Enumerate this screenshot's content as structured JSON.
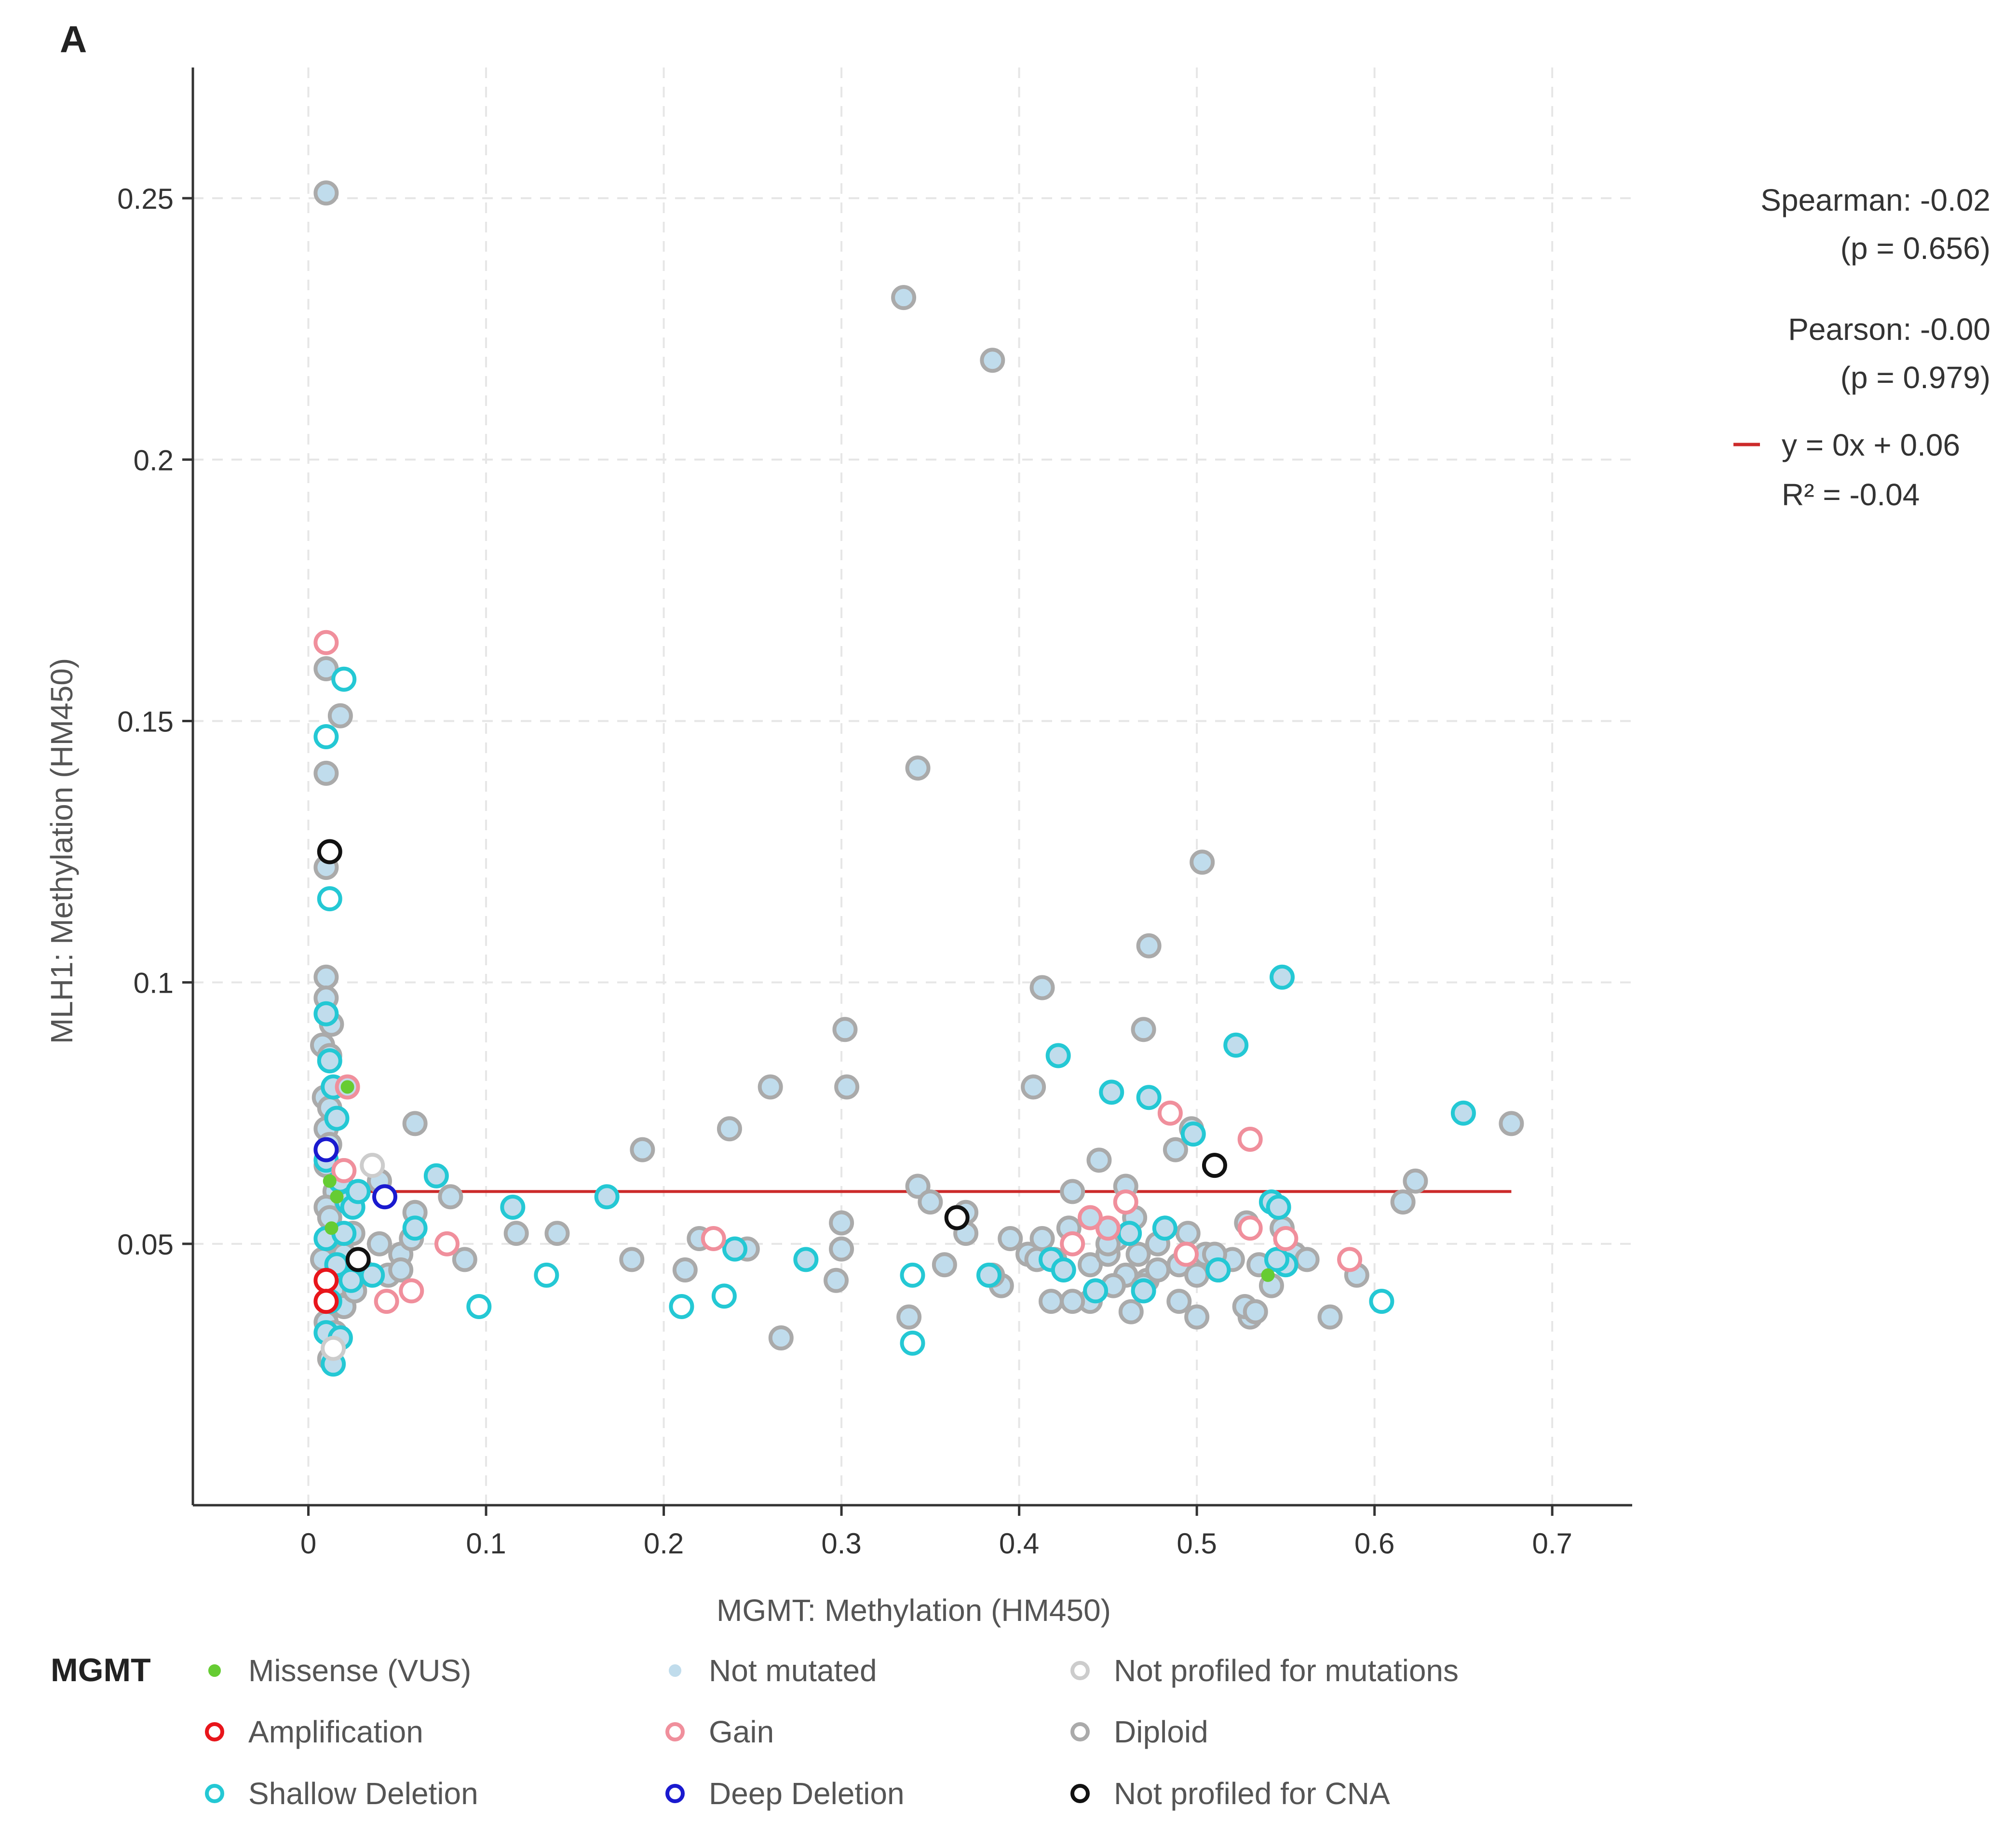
{
  "panel_label": "A",
  "chart_data": {
    "type": "scatter",
    "title": "",
    "xlabel": "MGMT: Methylation (HM450)",
    "ylabel": "MLH1: Methylation (HM450)",
    "xlim": [
      -0.065,
      0.745
    ],
    "ylim": [
      0.0,
      0.275
    ],
    "x_ticks": [
      0,
      0.1,
      0.2,
      0.3,
      0.4,
      0.5,
      0.6,
      0.7
    ],
    "x_tick_labels": [
      "0",
      "0.1",
      "0.2",
      "0.3",
      "0.4",
      "0.5",
      "0.6",
      "0.7"
    ],
    "y_ticks": [
      0.05,
      0.1,
      0.15,
      0.2,
      0.25
    ],
    "y_tick_labels": [
      "0.05",
      "0.1",
      "0.15",
      "0.2",
      "0.25"
    ],
    "grid": true,
    "stats": {
      "spearman": "Spearman: -0.02",
      "spearman_p": "(p = 0.656)",
      "pearson": "Pearson: -0.00",
      "pearson_p": "(p = 0.979)",
      "regression": "y = 0x + 0.06",
      "r2": "R² = -0.04"
    },
    "regression_line": {
      "slope": 0,
      "intercept": 0.06,
      "x_range": [
        0.01,
        0.677
      ],
      "color": "#cc2a2a"
    },
    "legend": {
      "title": "MGMT",
      "position": "bottom",
      "entries": [
        {
          "key": "missense",
          "label": "Missense (VUS)",
          "fill": "#66cc33",
          "stroke": "#66cc33",
          "solid": true
        },
        {
          "key": "notmut",
          "label": "Not mutated",
          "fill": "#c0dcec",
          "stroke": "#c0dcec",
          "solid": true
        },
        {
          "key": "notprof",
          "label": "Not profiled for mutations",
          "fill": "#ffffff",
          "stroke": "#cccccc",
          "solid": false
        },
        {
          "key": "amp",
          "label": "Amplification",
          "fill": "#ffffff",
          "stroke": "#e8151b",
          "solid": false
        },
        {
          "key": "gain",
          "label": "Gain",
          "fill": "#ffffff",
          "stroke": "#f08f9c",
          "solid": false
        },
        {
          "key": "diploid",
          "label": "Diploid",
          "fill": "#ffffff",
          "stroke": "#aaaaaa",
          "solid": false
        },
        {
          "key": "shallow",
          "label": "Shallow Deletion",
          "fill": "#ffffff",
          "stroke": "#24c8d4",
          "solid": false
        },
        {
          "key": "deep",
          "label": "Deep Deletion",
          "fill": "#ffffff",
          "stroke": "#1a1acf",
          "solid": false
        },
        {
          "key": "nocna",
          "label": "Not profiled for CNA",
          "fill": "#ffffff",
          "stroke": "#111111",
          "solid": false
        }
      ]
    },
    "categories": {
      "diploid": {
        "fill": "#c0dcec",
        "stroke": "#aaaaaa"
      },
      "shallow": {
        "fill": "#c0dcec",
        "stroke": "#24c8d4"
      },
      "shallow_open": {
        "fill": "#ffffff",
        "stroke": "#24c8d4"
      },
      "gain": {
        "fill": "#c0dcec",
        "stroke": "#f08f9c"
      },
      "gain_open": {
        "fill": "#ffffff",
        "stroke": "#f08f9c"
      },
      "amp": {
        "fill": "#ffffff",
        "stroke": "#e8151b"
      },
      "deep": {
        "fill": "#ffffff",
        "stroke": "#1a1acf"
      },
      "nocna": {
        "fill": "#ffffff",
        "stroke": "#111111"
      },
      "notprof": {
        "fill": "#ffffff",
        "stroke": "#cccccc"
      }
    },
    "missense_points": [
      [
        0.012,
        0.062
      ],
      [
        0.016,
        0.059
      ],
      [
        0.022,
        0.08
      ],
      [
        0.013,
        0.053
      ],
      [
        0.54,
        0.044
      ]
    ],
    "series": [
      {
        "name": "diploid",
        "points": [
          [
            0.01,
            0.251
          ],
          [
            0.335,
            0.231
          ],
          [
            0.385,
            0.219
          ],
          [
            0.01,
            0.16
          ],
          [
            0.018,
            0.151
          ],
          [
            0.01,
            0.14
          ],
          [
            0.343,
            0.141
          ],
          [
            0.503,
            0.123
          ],
          [
            0.01,
            0.122
          ],
          [
            0.01,
            0.101
          ],
          [
            0.473,
            0.107
          ],
          [
            0.413,
            0.099
          ],
          [
            0.01,
            0.097
          ],
          [
            0.013,
            0.092
          ],
          [
            0.302,
            0.091
          ],
          [
            0.47,
            0.091
          ],
          [
            0.008,
            0.088
          ],
          [
            0.012,
            0.086
          ],
          [
            0.408,
            0.08
          ],
          [
            0.26,
            0.08
          ],
          [
            0.303,
            0.08
          ],
          [
            0.009,
            0.078
          ],
          [
            0.012,
            0.076
          ],
          [
            0.01,
            0.072
          ],
          [
            0.06,
            0.073
          ],
          [
            0.237,
            0.072
          ],
          [
            0.677,
            0.073
          ],
          [
            0.012,
            0.069
          ],
          [
            0.488,
            0.068
          ],
          [
            0.188,
            0.068
          ],
          [
            0.497,
            0.072
          ],
          [
            0.01,
            0.065
          ],
          [
            0.02,
            0.064
          ],
          [
            0.343,
            0.061
          ],
          [
            0.445,
            0.066
          ],
          [
            0.623,
            0.062
          ],
          [
            0.04,
            0.062
          ],
          [
            0.015,
            0.06
          ],
          [
            0.46,
            0.061
          ],
          [
            0.08,
            0.059
          ],
          [
            0.616,
            0.058
          ],
          [
            0.37,
            0.056
          ],
          [
            0.35,
            0.058
          ],
          [
            0.43,
            0.06
          ],
          [
            0.01,
            0.057
          ],
          [
            0.06,
            0.056
          ],
          [
            0.012,
            0.055
          ],
          [
            0.018,
            0.05
          ],
          [
            0.025,
            0.052
          ],
          [
            0.04,
            0.05
          ],
          [
            0.052,
            0.048
          ],
          [
            0.058,
            0.051
          ],
          [
            0.088,
            0.047
          ],
          [
            0.117,
            0.052
          ],
          [
            0.14,
            0.052
          ],
          [
            0.182,
            0.047
          ],
          [
            0.22,
            0.051
          ],
          [
            0.247,
            0.049
          ],
          [
            0.3,
            0.054
          ],
          [
            0.3,
            0.049
          ],
          [
            0.297,
            0.043
          ],
          [
            0.212,
            0.045
          ],
          [
            0.37,
            0.052
          ],
          [
            0.358,
            0.046
          ],
          [
            0.395,
            0.051
          ],
          [
            0.405,
            0.048
          ],
          [
            0.413,
            0.051
          ],
          [
            0.42,
            0.047
          ],
          [
            0.428,
            0.053
          ],
          [
            0.44,
            0.046
          ],
          [
            0.45,
            0.048
          ],
          [
            0.455,
            0.051
          ],
          [
            0.46,
            0.044
          ],
          [
            0.467,
            0.048
          ],
          [
            0.472,
            0.043
          ],
          [
            0.478,
            0.05
          ],
          [
            0.49,
            0.046
          ],
          [
            0.495,
            0.052
          ],
          [
            0.5,
            0.044
          ],
          [
            0.505,
            0.048
          ],
          [
            0.512,
            0.045
          ],
          [
            0.52,
            0.047
          ],
          [
            0.528,
            0.054
          ],
          [
            0.535,
            0.046
          ],
          [
            0.542,
            0.042
          ],
          [
            0.548,
            0.053
          ],
          [
            0.555,
            0.048
          ],
          [
            0.562,
            0.047
          ],
          [
            0.59,
            0.044
          ],
          [
            0.575,
            0.036
          ],
          [
            0.53,
            0.036
          ],
          [
            0.5,
            0.036
          ],
          [
            0.463,
            0.037
          ],
          [
            0.44,
            0.039
          ],
          [
            0.418,
            0.039
          ],
          [
            0.43,
            0.039
          ],
          [
            0.39,
            0.042
          ],
          [
            0.338,
            0.036
          ],
          [
            0.266,
            0.032
          ],
          [
            0.012,
            0.045
          ],
          [
            0.016,
            0.042
          ],
          [
            0.02,
            0.038
          ],
          [
            0.026,
            0.041
          ],
          [
            0.01,
            0.035
          ],
          [
            0.015,
            0.033
          ],
          [
            0.02,
            0.048
          ],
          [
            0.03,
            0.045
          ],
          [
            0.045,
            0.044
          ],
          [
            0.052,
            0.045
          ],
          [
            0.008,
            0.047
          ],
          [
            0.478,
            0.045
          ],
          [
            0.47,
            0.042
          ],
          [
            0.49,
            0.039
          ],
          [
            0.51,
            0.048
          ],
          [
            0.527,
            0.038
          ],
          [
            0.533,
            0.037
          ],
          [
            0.41,
            0.047
          ],
          [
            0.453,
            0.042
          ],
          [
            0.385,
            0.044
          ],
          [
            0.012,
            0.028
          ],
          [
            0.45,
            0.05
          ],
          [
            0.465,
            0.055
          ]
        ]
      },
      {
        "name": "shallow",
        "points": [
          [
            0.01,
            0.094
          ],
          [
            0.012,
            0.085
          ],
          [
            0.014,
            0.08
          ],
          [
            0.016,
            0.074
          ],
          [
            0.01,
            0.066
          ],
          [
            0.018,
            0.062
          ],
          [
            0.022,
            0.058
          ],
          [
            0.025,
            0.057
          ],
          [
            0.01,
            0.051
          ],
          [
            0.016,
            0.046
          ],
          [
            0.024,
            0.043
          ],
          [
            0.01,
            0.033
          ],
          [
            0.018,
            0.032
          ],
          [
            0.014,
            0.027
          ],
          [
            0.06,
            0.053
          ],
          [
            0.072,
            0.063
          ],
          [
            0.115,
            0.057
          ],
          [
            0.168,
            0.059
          ],
          [
            0.24,
            0.049
          ],
          [
            0.28,
            0.047
          ],
          [
            0.383,
            0.044
          ],
          [
            0.418,
            0.047
          ],
          [
            0.425,
            0.045
          ],
          [
            0.443,
            0.041
          ],
          [
            0.462,
            0.052
          ],
          [
            0.47,
            0.041
          ],
          [
            0.482,
            0.053
          ],
          [
            0.498,
            0.071
          ],
          [
            0.512,
            0.045
          ],
          [
            0.522,
            0.088
          ],
          [
            0.542,
            0.058
          ],
          [
            0.548,
            0.101
          ],
          [
            0.55,
            0.046
          ],
          [
            0.422,
            0.086
          ],
          [
            0.452,
            0.079
          ],
          [
            0.473,
            0.078
          ],
          [
            0.65,
            0.075
          ],
          [
            0.036,
            0.044
          ],
          [
            0.028,
            0.06
          ],
          [
            0.012,
            0.039
          ],
          [
            0.02,
            0.052
          ],
          [
            0.546,
            0.057
          ],
          [
            0.545,
            0.047
          ]
        ]
      },
      {
        "name": "shallow_open",
        "points": [
          [
            0.01,
            0.147
          ],
          [
            0.02,
            0.158
          ],
          [
            0.012,
            0.116
          ],
          [
            0.134,
            0.044
          ],
          [
            0.096,
            0.038
          ],
          [
            0.21,
            0.038
          ],
          [
            0.234,
            0.04
          ],
          [
            0.34,
            0.044
          ],
          [
            0.34,
            0.031
          ],
          [
            0.604,
            0.039
          ]
        ]
      },
      {
        "name": "gain",
        "points": [
          [
            0.022,
            0.08
          ],
          [
            0.45,
            0.053
          ],
          [
            0.44,
            0.055
          ]
        ]
      },
      {
        "name": "gain_open",
        "points": [
          [
            0.01,
            0.165
          ],
          [
            0.02,
            0.064
          ],
          [
            0.078,
            0.05
          ],
          [
            0.058,
            0.041
          ],
          [
            0.044,
            0.039
          ],
          [
            0.228,
            0.051
          ],
          [
            0.43,
            0.05
          ],
          [
            0.46,
            0.058
          ],
          [
            0.485,
            0.075
          ],
          [
            0.53,
            0.07
          ],
          [
            0.53,
            0.053
          ],
          [
            0.55,
            0.051
          ],
          [
            0.586,
            0.047
          ],
          [
            0.494,
            0.048
          ]
        ]
      },
      {
        "name": "amp",
        "points": [
          [
            0.01,
            0.043
          ],
          [
            0.01,
            0.039
          ]
        ]
      },
      {
        "name": "deep",
        "points": [
          [
            0.01,
            0.068
          ],
          [
            0.043,
            0.059
          ]
        ]
      },
      {
        "name": "nocna",
        "points": [
          [
            0.012,
            0.125
          ],
          [
            0.028,
            0.047
          ],
          [
            0.365,
            0.055
          ],
          [
            0.51,
            0.065
          ]
        ]
      },
      {
        "name": "notprof",
        "points": [
          [
            0.036,
            0.065
          ],
          [
            0.014,
            0.03
          ]
        ]
      }
    ]
  }
}
